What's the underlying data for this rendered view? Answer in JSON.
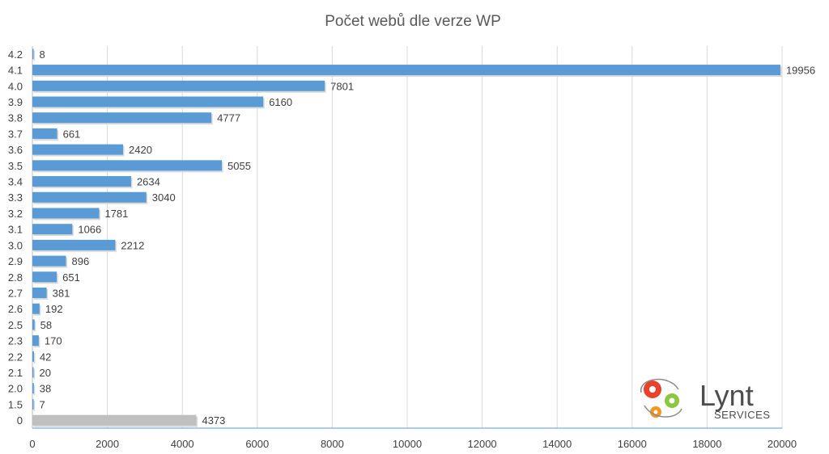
{
  "chart_data": {
    "type": "bar",
    "orientation": "horizontal",
    "title": "Počet webů dle verze WP",
    "categories": [
      "4.2",
      "4.1",
      "4.0",
      "3.9",
      "3.8",
      "3.7",
      "3.6",
      "3.5",
      "3.4",
      "3.3",
      "3.2",
      "3.1",
      "3.0",
      "2.9",
      "2.8",
      "2.7",
      "2.6",
      "2.5",
      "2.3",
      "2.2",
      "2.1",
      "2.0",
      "1.5",
      "0"
    ],
    "values": [
      8,
      19956,
      7801,
      6160,
      4777,
      661,
      2420,
      5055,
      2634,
      3040,
      1781,
      1066,
      2212,
      896,
      651,
      381,
      192,
      58,
      170,
      42,
      20,
      38,
      7,
      4373
    ],
    "highlight_category": "0",
    "xlim": [
      0,
      20000
    ],
    "xticks": [
      "0",
      "2000",
      "4000",
      "6000",
      "8000",
      "10000",
      "12000",
      "14000",
      "16000",
      "18000",
      "20000"
    ],
    "grid": true,
    "colors": {
      "bar": "#5b9bd5",
      "highlight": "#bfbfbf"
    }
  },
  "logo": {
    "name": "Lynt",
    "subtitle": "SERVICES",
    "colors": [
      "#e8412c",
      "#8dc63f",
      "#f7941d"
    ]
  }
}
